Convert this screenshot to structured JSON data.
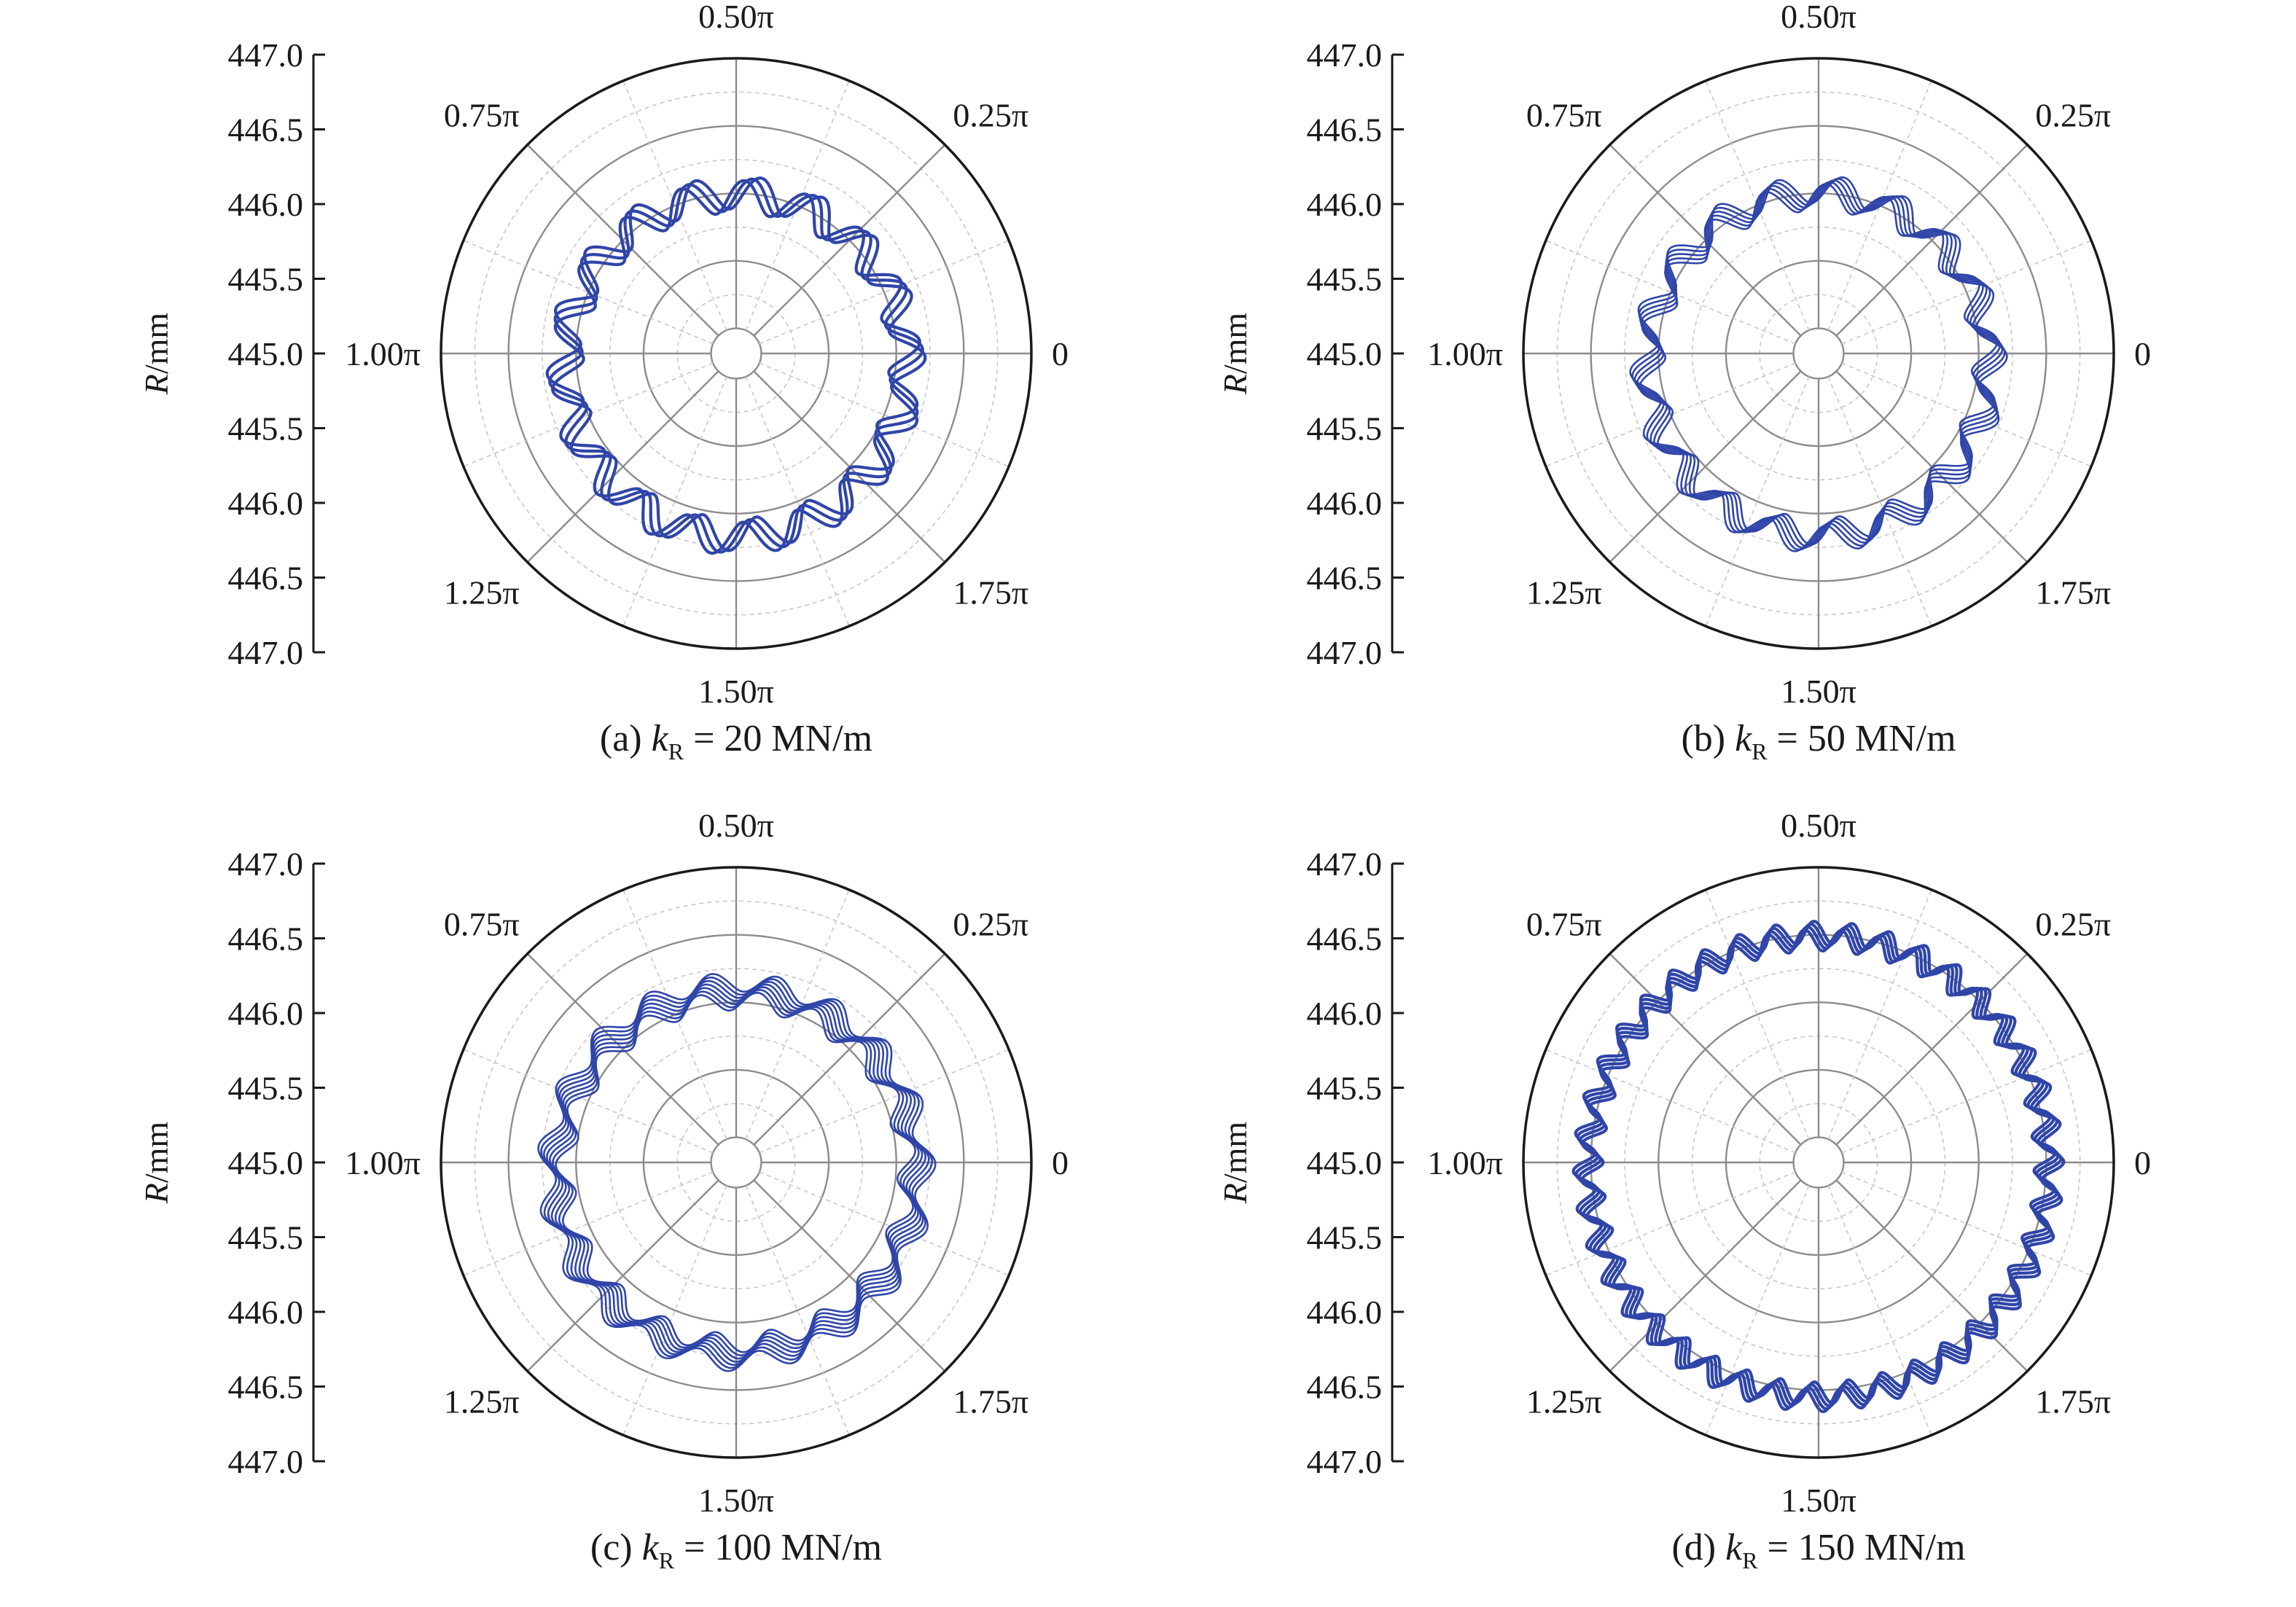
{
  "chart_data": [
    {
      "type": "polar-line",
      "panel": "a",
      "caption": {
        "prefix": "(a) ",
        "k": "k",
        "sub": "R",
        "rest": " = 20 MN/m"
      },
      "ylabel": {
        "var": "R",
        "unit": "/mm"
      },
      "radial_ticks": [
        "447.0",
        "446.5",
        "446.0",
        "445.5",
        "445.0",
        "445.5",
        "446.0",
        "446.5",
        "447.0"
      ],
      "radial_range": [
        445.0,
        447.0
      ],
      "angle_labels": [
        "0",
        "0.25π",
        "0.50π",
        "0.75π",
        "1.00π",
        "1.25π",
        "1.50π",
        "1.75π"
      ],
      "grid": true,
      "line_color": "#2f45a8",
      "orbit": {
        "mean_radius": 446.08,
        "wave_amplitude": 0.12,
        "lobes": 18,
        "band_width": 0.03,
        "strands": 3,
        "y_offset": -0.09
      }
    },
    {
      "type": "polar-line",
      "panel": "b",
      "caption": {
        "prefix": "(b) ",
        "k": "k",
        "sub": "R",
        "rest": " = 50 MN/m"
      },
      "ylabel": {
        "var": "R",
        "unit": "/mm"
      },
      "radial_ticks": [
        "447.0",
        "446.5",
        "446.0",
        "445.5",
        "445.0",
        "445.5",
        "446.0",
        "446.5",
        "447.0"
      ],
      "radial_range": [
        445.0,
        447.0
      ],
      "angle_labels": [
        "0",
        "0.25π",
        "0.50π",
        "0.75π",
        "1.00π",
        "1.25π",
        "1.50π",
        "1.75π"
      ],
      "grid": true,
      "line_color": "#2f45a8",
      "orbit": {
        "mean_radius": 446.08,
        "wave_amplitude": 0.1,
        "lobes": 18,
        "band_width": 0.06,
        "strands": 5,
        "y_offset": -0.08
      }
    },
    {
      "type": "polar-line",
      "panel": "c",
      "caption": {
        "prefix": "(c) ",
        "k": "k",
        "sub": "R",
        "rest": " = 100 MN/m"
      },
      "ylabel": {
        "var": "R",
        "unit": "/mm"
      },
      "radial_ticks": [
        "447.0",
        "446.5",
        "446.0",
        "445.5",
        "445.0",
        "445.5",
        "446.0",
        "446.5",
        "447.0"
      ],
      "radial_range": [
        445.0,
        447.0
      ],
      "angle_labels": [
        "0",
        "0.25π",
        "0.50π",
        "0.75π",
        "1.00π",
        "1.25π",
        "1.50π",
        "1.75π"
      ],
      "grid": true,
      "line_color": "#2f45a8",
      "orbit": {
        "mean_radius": 446.15,
        "wave_amplitude": 0.07,
        "lobes": 19,
        "band_width": 0.14,
        "strands": 7,
        "y_offset": -0.07
      }
    },
    {
      "type": "polar-line",
      "panel": "d",
      "caption": {
        "prefix": "(d) ",
        "k": "k",
        "sub": "R",
        "rest": " = 150 MN/m"
      },
      "ylabel": {
        "var": "R",
        "unit": "/mm"
      },
      "radial_ticks": [
        "447.0",
        "446.5",
        "446.0",
        "445.5",
        "445.0",
        "445.5",
        "446.0",
        "446.5",
        "447.0"
      ],
      "radial_range": [
        445.0,
        447.0
      ],
      "angle_labels": [
        "0",
        "0.25π",
        "0.50π",
        "0.75π",
        "1.00π",
        "1.25π",
        "1.50π",
        "1.75π"
      ],
      "grid": true,
      "line_color": "#2f45a8",
      "orbit": {
        "mean_radius": 446.52,
        "wave_amplitude": 0.08,
        "lobes": 40,
        "band_width": 0.06,
        "strands": 4,
        "y_offset": -0.03
      }
    }
  ]
}
